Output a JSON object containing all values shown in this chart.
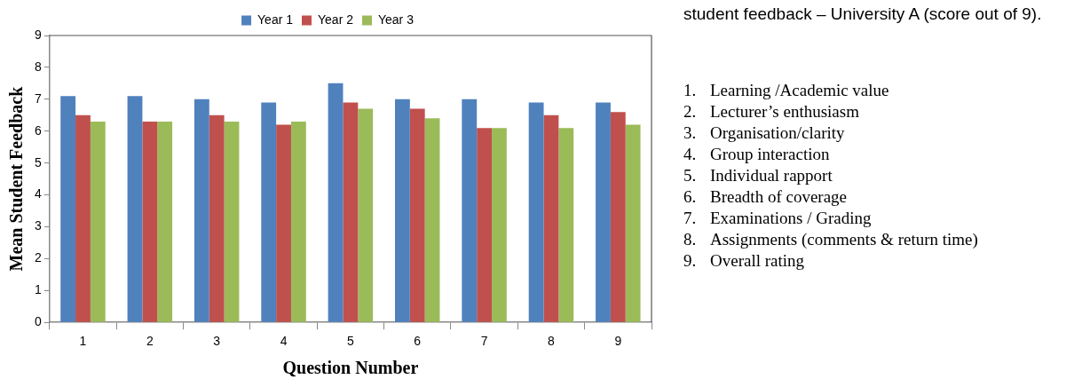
{
  "chart_data": {
    "type": "bar",
    "subtitle": "student feedback – University A (score out of 9).",
    "xlabel": "Question Number",
    "ylabel": "Mean Student Feedback",
    "categories": [
      "1",
      "2",
      "3",
      "4",
      "5",
      "6",
      "7",
      "8",
      "9"
    ],
    "series": [
      {
        "name": "Year 1",
        "color": "#4f81bd",
        "values": [
          7.1,
          7.1,
          7.0,
          6.9,
          7.5,
          7.0,
          7.0,
          6.9,
          6.9
        ]
      },
      {
        "name": "Year 2",
        "color": "#c0504d",
        "values": [
          6.5,
          6.3,
          6.5,
          6.2,
          6.9,
          6.7,
          6.1,
          6.5,
          6.6
        ]
      },
      {
        "name": "Year 3",
        "color": "#9bbb59",
        "values": [
          6.3,
          6.3,
          6.3,
          6.3,
          6.7,
          6.4,
          6.1,
          6.1,
          6.2
        ]
      }
    ],
    "ylim": [
      0,
      9
    ],
    "yticks": [
      0,
      1,
      2,
      3,
      4,
      5,
      6,
      7,
      8,
      9
    ],
    "grid": false,
    "legend": "top",
    "annotations": [
      "1. Learning /Academic value",
      "2. Lecturer’s enthusiasm",
      "3. Organisation/clarity",
      "4. Group interaction",
      "5. Individual rapport",
      "6. Breadth of coverage",
      "7. Examinations / Grading",
      "8. Assignments (comments & return time)",
      "9. Overall rating"
    ]
  }
}
